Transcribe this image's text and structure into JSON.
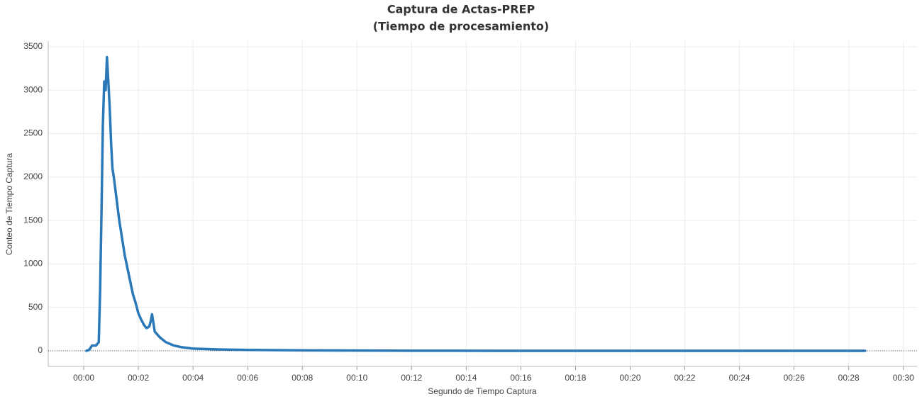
{
  "chart_data": {
    "type": "line",
    "title": "Captura de Actas-PREP",
    "subtitle": "(Tiempo de procesamiento)",
    "x_label": "Segundo de Tiempo Captura",
    "y_label": "Conteo de Tiempo Captura",
    "x": [
      0.1,
      0.2,
      0.3,
      0.45,
      0.55,
      0.6,
      0.65,
      0.7,
      0.75,
      0.8,
      0.85,
      0.9,
      0.95,
      1.0,
      1.05,
      1.1,
      1.2,
      1.3,
      1.4,
      1.5,
      1.6,
      1.7,
      1.8,
      1.9,
      2.0,
      2.1,
      2.2,
      2.3,
      2.4,
      2.45,
      2.5,
      2.55,
      2.6,
      2.8,
      3.0,
      3.3,
      3.6,
      4,
      5,
      6,
      8,
      10,
      12,
      15,
      20,
      25,
      28.6
    ],
    "series": [
      {
        "name": "Conteo de Tiempo Captura",
        "color": "#2b78b8",
        "values": [
          0,
          10,
          60,
          60,
          100,
          700,
          1600,
          2600,
          3100,
          3000,
          3380,
          3100,
          2800,
          2400,
          2100,
          2000,
          1750,
          1500,
          1300,
          1100,
          950,
          800,
          650,
          550,
          430,
          360,
          300,
          260,
          280,
          340,
          420,
          320,
          220,
          150,
          100,
          60,
          40,
          25,
          15,
          10,
          5,
          3,
          1,
          0,
          0,
          0,
          0
        ]
      }
    ],
    "xlim": [
      -1.3,
      30.5
    ],
    "xticks": [
      {
        "value": 0,
        "label": "00:00"
      },
      {
        "value": 2,
        "label": "00:02"
      },
      {
        "value": 4,
        "label": "00:04"
      },
      {
        "value": 6,
        "label": "00:06"
      },
      {
        "value": 8,
        "label": "00:08"
      },
      {
        "value": 10,
        "label": "00:10"
      },
      {
        "value": 12,
        "label": "00:12"
      },
      {
        "value": 14,
        "label": "00:14"
      },
      {
        "value": 16,
        "label": "00:16"
      },
      {
        "value": 18,
        "label": "00:18"
      },
      {
        "value": 20,
        "label": "00:20"
      },
      {
        "value": 22,
        "label": "00:22"
      },
      {
        "value": 24,
        "label": "00:24"
      },
      {
        "value": 26,
        "label": "00:26"
      },
      {
        "value": 28,
        "label": "00:28"
      },
      {
        "value": 30,
        "label": "00:30"
      }
    ],
    "ylim": [
      -180,
      3565
    ],
    "yticks": [
      0,
      500,
      1000,
      1500,
      2000,
      2500,
      3000,
      3500
    ],
    "grid": true
  }
}
